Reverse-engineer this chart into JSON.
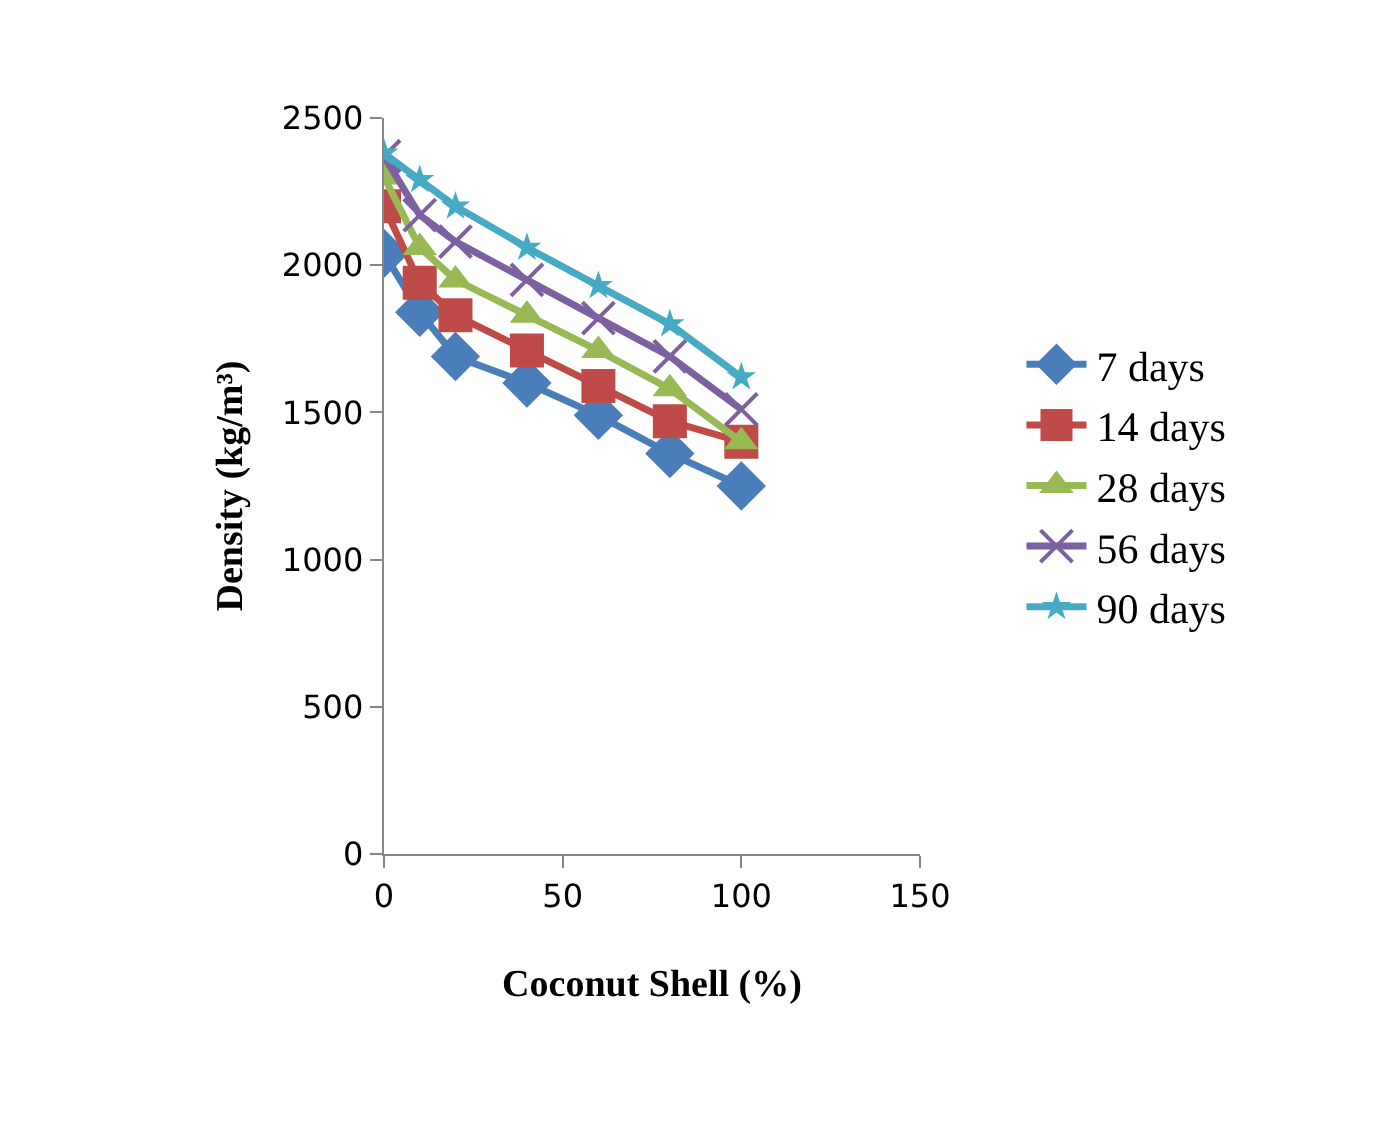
{
  "chart_data": {
    "type": "line",
    "xlabel": "Coconut Shell (%)",
    "ylabel": "Density (kg/m³)",
    "x": [
      0,
      10,
      20,
      40,
      60,
      80,
      100
    ],
    "series": [
      {
        "name": "7 days",
        "color": "#4a7ebb",
        "marker": "diamond",
        "values": [
          2040,
          1840,
          1690,
          1600,
          1490,
          1360,
          1250
        ]
      },
      {
        "name": "14 days",
        "color": "#be4b48",
        "marker": "square",
        "values": [
          2200,
          1940,
          1830,
          1710,
          1590,
          1470,
          1400
        ]
      },
      {
        "name": "28 days",
        "color": "#98b954",
        "marker": "triangle",
        "values": [
          2300,
          2060,
          1950,
          1830,
          1710,
          1580,
          1400
        ]
      },
      {
        "name": "56 days",
        "color": "#7d60a0",
        "marker": "cross",
        "values": [
          2370,
          2170,
          2080,
          1950,
          1820,
          1690,
          1510
        ]
      },
      {
        "name": "90 days",
        "color": "#46aac5",
        "marker": "star",
        "values": [
          2380,
          2290,
          2200,
          2060,
          1930,
          1800,
          1620
        ]
      }
    ],
    "xlim": [
      0,
      150
    ],
    "xticks": [
      0,
      50,
      100,
      150
    ],
    "ylim": [
      0,
      2500
    ],
    "yticks": [
      0,
      500,
      1000,
      1500,
      2000,
      2500
    ],
    "grid": false,
    "legend": "right",
    "line_style": "solid"
  }
}
